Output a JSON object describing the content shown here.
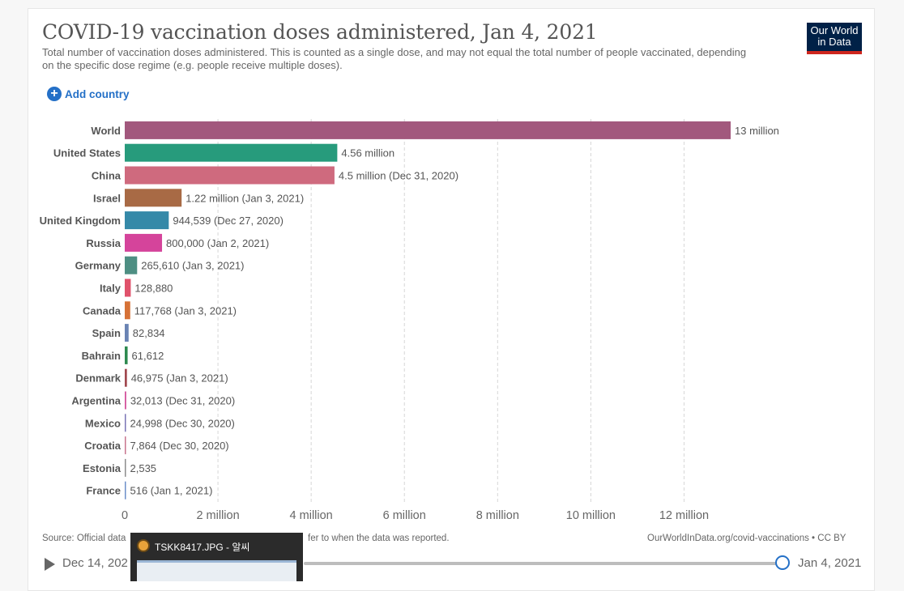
{
  "header": {
    "title": "COVID-19 vaccination doses administered, Jan 4, 2021",
    "subtitle": "Total number of vaccination doses administered. This is counted as a single dose, and may not equal the total number of people vaccinated, depending on the specific dose regime (e.g. people receive multiple doses).",
    "logo_line1": "Our World",
    "logo_line2": "in Data",
    "add_country_label": "Add country"
  },
  "chart_data": {
    "type": "bar",
    "orientation": "horizontal",
    "title": "COVID-19 vaccination doses administered, Jan 4, 2021",
    "categories": [
      "World",
      "United States",
      "China",
      "Israel",
      "United Kingdom",
      "Russia",
      "Germany",
      "Italy",
      "Canada",
      "Spain",
      "Bahrain",
      "Denmark",
      "Argentina",
      "Mexico",
      "Croatia",
      "Estonia",
      "France"
    ],
    "values": [
      13000000,
      4560000,
      4500000,
      1220000,
      944539,
      800000,
      265610,
      128880,
      117768,
      82834,
      61612,
      46975,
      32013,
      24998,
      7864,
      2535,
      516
    ],
    "labels": [
      "13 million",
      "4.56 million",
      "4.5 million (Dec 31, 2020)",
      "1.22 million (Jan 3, 2021)",
      "944,539 (Dec 27, 2020)",
      "800,000 (Jan 2, 2021)",
      "265,610 (Jan 3, 2021)",
      "128,880",
      "117,768 (Jan 3, 2021)",
      "82,834",
      "61,612",
      "46,975 (Jan 3, 2021)",
      "32,013 (Dec 31, 2020)",
      "24,998 (Dec 30, 2020)",
      "7,864 (Dec 30, 2020)",
      "2,535",
      "516 (Jan 1, 2021)"
    ],
    "colors": [
      "#a2587d",
      "#279b7c",
      "#cf6a7e",
      "#a86a45",
      "#3589a8",
      "#d5449b",
      "#4e8f83",
      "#e0526b",
      "#d67237",
      "#6a83b3",
      "#2e8a4f",
      "#a1484f",
      "#d4559e",
      "#7a74b5",
      "#c8748e",
      "#8d8d8d",
      "#6c8fc9"
    ],
    "xlim": [
      0,
      13000000
    ],
    "xticks": [
      0,
      2000000,
      4000000,
      6000000,
      8000000,
      10000000,
      12000000
    ],
    "xtick_labels": [
      "0",
      "2 million",
      "4 million",
      "6 million",
      "8 million",
      "10 million",
      "12 million"
    ],
    "grid": true
  },
  "footer": {
    "source": "Source: Official data",
    "source_tail": "fer to when the data was reported.",
    "credit": "OurWorldInData.org/covid-vaccinations • CC BY"
  },
  "timeline": {
    "start_label": "Dec 14, 202",
    "end_label": "Jan 4, 2021"
  },
  "taskbar_popup": {
    "title": "TSKK8417.JPG - 알씨"
  }
}
